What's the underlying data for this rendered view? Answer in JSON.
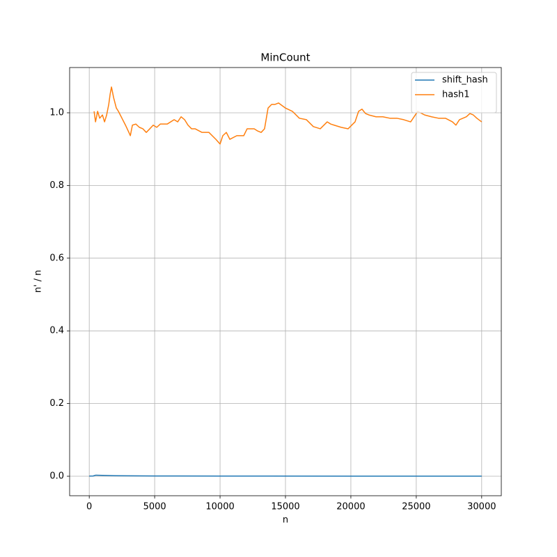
{
  "chart_data": {
    "type": "line",
    "title": "MinCount",
    "x_label": "n",
    "y_label": "n' / n",
    "xlim": [
      -1500,
      31500
    ],
    "ylim": [
      -0.0536,
      1.1245
    ],
    "xticks": [
      0,
      5000,
      10000,
      15000,
      20000,
      25000,
      30000
    ],
    "yticks": [
      {
        "value": 0,
        "label": "0.0"
      },
      0.2,
      0.4,
      0.6,
      0.8,
      {
        "value": 1,
        "label": "1.0"
      }
    ],
    "grid": true,
    "legend": "upper right",
    "series": [
      {
        "name": "shift_hash",
        "color": "#1f77b4",
        "x": [
          0,
          300,
          500,
          1000,
          2000,
          5000,
          10000,
          20000,
          30000
        ],
        "values": [
          0.0005,
          0.0008,
          0.003,
          0.0025,
          0.0015,
          0.0008,
          0.0005,
          0.0003,
          0.0002
        ]
      },
      {
        "name": "hash1",
        "color": "#ff7f0e",
        "x": [
          370,
          480,
          640,
          800,
          1010,
          1170,
          1330,
          1490,
          1600,
          1700,
          1860,
          2070,
          2230,
          2500,
          2770,
          3030,
          3140,
          3300,
          3560,
          3830,
          4100,
          4360,
          4630,
          4890,
          5160,
          5430,
          5960,
          6490,
          6760,
          7020,
          7290,
          7550,
          7820,
          8090,
          8620,
          9150,
          9680,
          10000,
          10210,
          10480,
          10750,
          11280,
          11810,
          12070,
          12610,
          12870,
          13140,
          13400,
          13670,
          13940,
          14200,
          14470,
          15000,
          15530,
          16060,
          16600,
          17130,
          17660,
          18190,
          18460,
          18720,
          19260,
          19790,
          20320,
          20590,
          20850,
          21120,
          21380,
          21920,
          22450,
          22980,
          23510,
          24040,
          24570,
          25110,
          25640,
          26170,
          26700,
          27230,
          27770,
          28030,
          28300,
          28830,
          29100,
          29360,
          29630,
          30000
        ],
        "values": [
          1.004,
          0.975,
          1.004,
          0.985,
          0.994,
          0.975,
          0.994,
          1.023,
          1.052,
          1.071,
          1.042,
          1.013,
          1.004,
          0.985,
          0.966,
          0.946,
          0.937,
          0.966,
          0.969,
          0.96,
          0.956,
          0.946,
          0.956,
          0.966,
          0.96,
          0.969,
          0.969,
          0.981,
          0.975,
          0.989,
          0.981,
          0.966,
          0.956,
          0.956,
          0.946,
          0.946,
          0.927,
          0.914,
          0.937,
          0.946,
          0.927,
          0.937,
          0.937,
          0.956,
          0.956,
          0.95,
          0.946,
          0.956,
          1.013,
          1.023,
          1.023,
          1.027,
          1.013,
          1.004,
          0.985,
          0.981,
          0.962,
          0.956,
          0.975,
          0.969,
          0.966,
          0.96,
          0.956,
          0.975,
          1.004,
          1.01,
          0.998,
          0.994,
          0.989,
          0.989,
          0.985,
          0.985,
          0.981,
          0.975,
          1.004,
          0.994,
          0.989,
          0.985,
          0.985,
          0.975,
          0.966,
          0.981,
          0.989,
          0.998,
          0.994,
          0.985,
          0.975
        ]
      }
    ]
  }
}
